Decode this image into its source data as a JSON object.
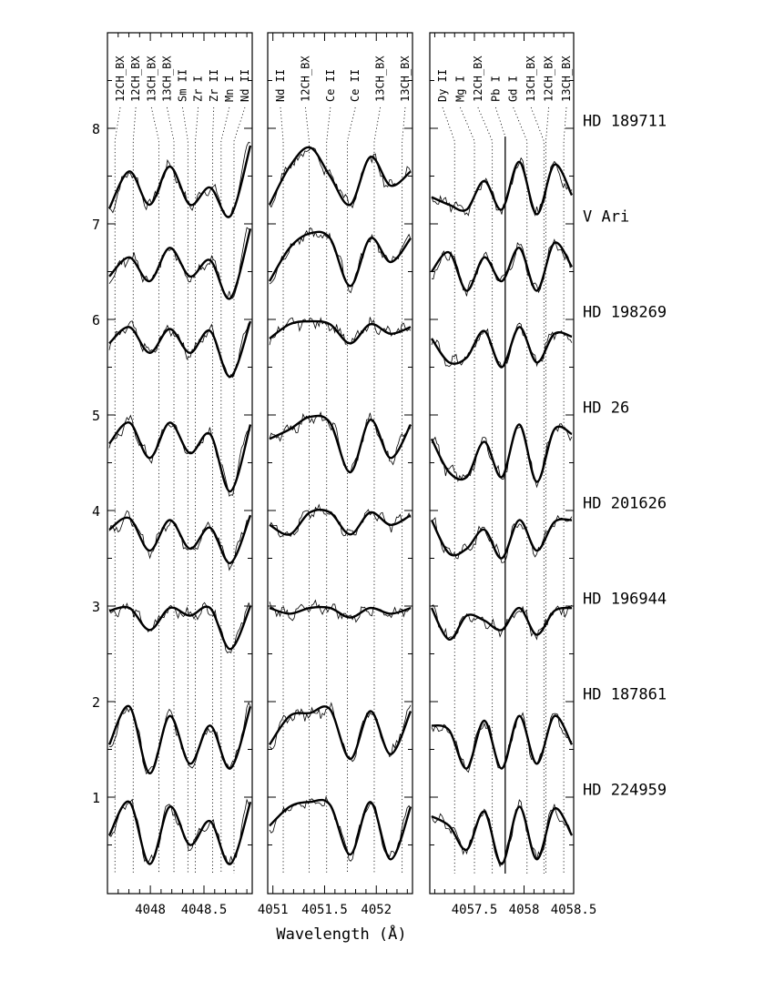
{
  "chart_data": {
    "type": "line",
    "title": "",
    "xlabel": "Wavelength (Å)",
    "ylabel": "",
    "ylim": [
      0,
      9
    ],
    "y_ticks": [
      "1",
      "2",
      "3",
      "4",
      "5",
      "6",
      "7",
      "8"
    ],
    "stars": [
      {
        "name": "HD  189711",
        "offset": 7.0
      },
      {
        "name": "V  Ari",
        "offset": 6.0
      },
      {
        "name": "HD  198269",
        "offset": 5.0
      },
      {
        "name": "HD  26",
        "offset": 4.0
      },
      {
        "name": "HD  201626",
        "offset": 3.0
      },
      {
        "name": "HD  196944",
        "offset": 2.0
      },
      {
        "name": "HD  187861",
        "offset": 1.0
      },
      {
        "name": "HD  224959",
        "offset": 0.0
      }
    ],
    "panels": [
      {
        "xlim": [
          4047.6,
          4048.95
        ],
        "tick_labels": [
          {
            "x": 4048,
            "label": "4048"
          },
          {
            "x": 4048.5,
            "label": "4048.5"
          }
        ],
        "lines": [
          {
            "label": "12CH_BX",
            "x": 4047.67
          },
          {
            "label": "12CH_BX",
            "x": 4047.84
          },
          {
            "label": "13CH_BX",
            "x": 4048.08
          },
          {
            "label": "13CH_BX",
            "x": 4048.22
          },
          {
            "label": "Sm II",
            "x": 4048.35
          },
          {
            "label": "Zr I",
            "x": 4048.42
          },
          {
            "label": "Zr II",
            "x": 4048.58
          },
          {
            "label": "Mn I",
            "x": 4048.66
          },
          {
            "label": "Nd II",
            "x": 4048.78
          }
        ]
      },
      {
        "xlim": [
          4050.95,
          4052.35
        ],
        "tick_labels": [
          {
            "x": 4051,
            "label": "4051"
          },
          {
            "x": 4051.5,
            "label": "4051.5"
          },
          {
            "x": 4052,
            "label": "4052"
          }
        ],
        "lines": [
          {
            "label": "Nd II",
            "x": 4051.1
          },
          {
            "label": "12CH_BX",
            "x": 4051.35
          },
          {
            "label": "Ce II",
            "x": 4051.52
          },
          {
            "label": "Ce II",
            "x": 4051.72
          },
          {
            "label": "13CH_BX",
            "x": 4051.98
          },
          {
            "label": "13CH_BX",
            "x": 4052.25
          }
        ]
      },
      {
        "xlim": [
          4057.05,
          4058.5
        ],
        "tick_labels": [
          {
            "x": 4057.5,
            "label": "4057.5"
          },
          {
            "x": 4058,
            "label": "4058"
          },
          {
            "x": 4058.5,
            "label": "4058.5"
          }
        ],
        "lines": [
          {
            "label": "Dy II",
            "x": 4057.3
          },
          {
            "label": "Mg I",
            "x": 4057.5
          },
          {
            "label": "12CH_BX",
            "x": 4057.68
          },
          {
            "label": "Pb I",
            "x": 4057.81
          },
          {
            "label": "Gd I",
            "x": 4058.03
          },
          {
            "label": "13CH_BX",
            "x": 4058.2
          },
          {
            "label": "12CH_BX",
            "x": 4058.22
          },
          {
            "label": "13CH_BX",
            "x": 4058.4
          }
        ]
      }
    ],
    "series": [
      {
        "values": [
          [
            7.16,
            7.55,
            7.2,
            7.6,
            7.2,
            7.38,
            7.08,
            7.82
          ],
          [
            7.2,
            7.6,
            7.8,
            7.5,
            7.2,
            7.7,
            7.4,
            7.55
          ],
          [
            7.28,
            7.2,
            7.15,
            7.45,
            7.15,
            7.65,
            7.1,
            7.62,
            7.3
          ]
        ]
      },
      {
        "values": [
          [
            6.45,
            6.65,
            6.4,
            6.75,
            6.45,
            6.62,
            6.22,
            6.95
          ],
          [
            6.4,
            6.75,
            6.9,
            6.85,
            6.35,
            6.85,
            6.6,
            6.85
          ],
          [
            6.5,
            6.7,
            6.3,
            6.65,
            6.4,
            6.75,
            6.3,
            6.8,
            6.55
          ]
        ]
      },
      {
        "values": [
          [
            5.75,
            5.92,
            5.65,
            5.9,
            5.65,
            5.88,
            5.4,
            5.98
          ],
          [
            5.8,
            5.95,
            5.98,
            5.95,
            5.75,
            5.95,
            5.85,
            5.92
          ],
          [
            5.8,
            5.55,
            5.6,
            5.88,
            5.5,
            5.92,
            5.55,
            5.85,
            5.82
          ]
        ]
      },
      {
        "values": [
          [
            4.7,
            4.92,
            4.55,
            4.92,
            4.6,
            4.8,
            4.2,
            4.9
          ],
          [
            4.75,
            4.85,
            4.98,
            4.92,
            4.4,
            4.95,
            4.55,
            4.9
          ],
          [
            4.75,
            4.4,
            4.35,
            4.72,
            4.35,
            4.9,
            4.3,
            4.85,
            4.8
          ]
        ]
      },
      {
        "values": [
          [
            3.8,
            3.92,
            3.58,
            3.9,
            3.6,
            3.82,
            3.45,
            3.95
          ],
          [
            3.85,
            3.75,
            3.98,
            3.98,
            3.75,
            3.98,
            3.85,
            3.95
          ],
          [
            3.9,
            3.55,
            3.6,
            3.8,
            3.5,
            3.9,
            3.58,
            3.88,
            3.9
          ]
        ]
      },
      {
        "values": [
          [
            2.95,
            2.98,
            2.75,
            2.98,
            2.9,
            2.98,
            2.55,
            3.0
          ],
          [
            2.98,
            2.92,
            2.98,
            2.98,
            2.88,
            2.98,
            2.92,
            2.98
          ],
          [
            2.98,
            2.65,
            2.9,
            2.85,
            2.75,
            2.98,
            2.7,
            2.95,
            2.98
          ]
        ]
      },
      {
        "values": [
          [
            1.55,
            1.95,
            1.25,
            1.85,
            1.35,
            1.75,
            1.3,
            1.95
          ],
          [
            1.55,
            1.85,
            1.88,
            1.92,
            1.4,
            1.9,
            1.45,
            1.9
          ],
          [
            1.75,
            1.7,
            1.3,
            1.8,
            1.3,
            1.85,
            1.35,
            1.85,
            1.55
          ]
        ]
      },
      {
        "values": [
          [
            0.6,
            0.95,
            0.3,
            0.9,
            0.5,
            0.75,
            0.3,
            0.95
          ],
          [
            0.7,
            0.9,
            0.95,
            0.92,
            0.4,
            0.95,
            0.35,
            0.9
          ],
          [
            0.8,
            0.7,
            0.45,
            0.85,
            0.3,
            0.9,
            0.35,
            0.88,
            0.6
          ]
        ]
      }
    ]
  }
}
